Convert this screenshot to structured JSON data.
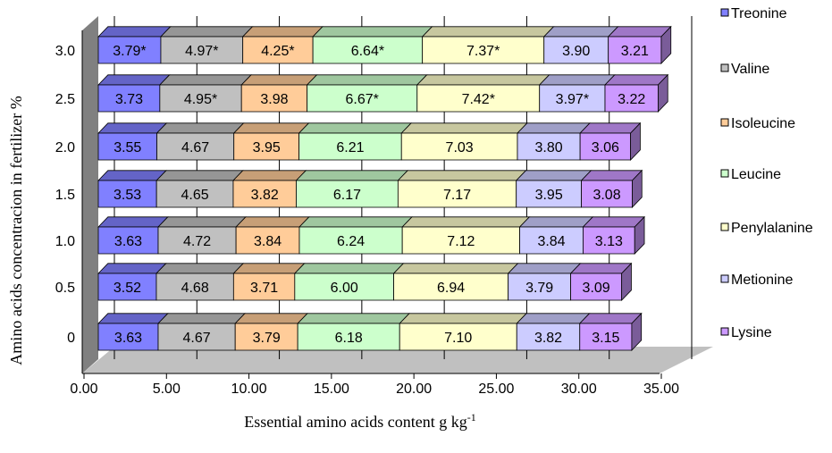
{
  "chart_data": {
    "type": "bar",
    "orientation": "horizontal",
    "stacked": true,
    "style": "3d",
    "categories": [
      "0",
      "0.5",
      "1.0",
      "1.5",
      "2.0",
      "2.5",
      "3.0"
    ],
    "series": [
      {
        "name": "Treonine",
        "color": "#8080ff",
        "values": [
          3.63,
          3.52,
          3.63,
          3.53,
          3.55,
          3.73,
          3.79
        ],
        "labels": [
          "3.63",
          "3.52",
          "3.63",
          "3.53",
          "3.55",
          "3.73",
          "3.79*"
        ]
      },
      {
        "name": "Valine",
        "color": "#c0c0c0",
        "values": [
          4.67,
          4.68,
          4.72,
          4.65,
          4.67,
          4.95,
          4.97
        ],
        "labels": [
          "4.67",
          "4.68",
          "4.72",
          "4.65",
          "4.67",
          "4.95*",
          "4.97*"
        ]
      },
      {
        "name": "Isoleucine",
        "color": "#ffcc99",
        "values": [
          3.79,
          3.71,
          3.84,
          3.82,
          3.95,
          3.98,
          4.25
        ],
        "labels": [
          "3.79",
          "3.71",
          "3.84",
          "3.82",
          "3.95",
          "3.98",
          "4.25*"
        ]
      },
      {
        "name": "Leucine",
        "color": "#ccffcc",
        "values": [
          6.18,
          6.0,
          6.24,
          6.17,
          6.21,
          6.67,
          6.64
        ],
        "labels": [
          "6.18",
          "6.00",
          "6.24",
          "6.17",
          "6.21",
          "6.67*",
          "6.64*"
        ]
      },
      {
        "name": "Penylalanine",
        "color": "#ffffcc",
        "values": [
          7.1,
          6.94,
          7.12,
          7.17,
          7.03,
          7.42,
          7.37
        ],
        "labels": [
          "7.10",
          "6.94",
          "7.12",
          "7.17",
          "7.03",
          "7.42*",
          "7.37*"
        ]
      },
      {
        "name": "Metionine",
        "color": "#ccccff",
        "values": [
          3.82,
          3.79,
          3.84,
          3.95,
          3.8,
          3.97,
          3.9
        ],
        "labels": [
          "3.82",
          "3.79",
          "3.84",
          "3.95",
          "3.80",
          "3.97*",
          "3.90"
        ]
      },
      {
        "name": "Lysine",
        "color": "#cc99ff",
        "values": [
          3.15,
          3.09,
          3.13,
          3.08,
          3.06,
          3.22,
          3.21
        ],
        "labels": [
          "3.15",
          "3.09",
          "3.13",
          "3.08",
          "3.06",
          "3.22",
          "3.21"
        ]
      }
    ],
    "xlim": [
      0,
      35
    ],
    "xticks": [
      "0.00",
      "5.00",
      "10.00",
      "15.00",
      "20.00",
      "25.00",
      "30.00",
      "35.00"
    ],
    "xlabel": "Essential amino acids content g kg",
    "xlabel_sup": "-1",
    "ylabel": "Amino acids concentracion in fertilizer %",
    "legend_position": "right",
    "grid": true
  }
}
